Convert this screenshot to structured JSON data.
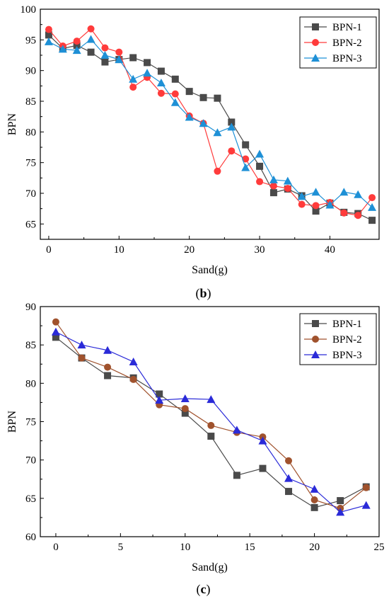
{
  "chart_data": [
    {
      "type": "line",
      "caption_pre": "(",
      "caption_letter": "b",
      "caption_post": ")",
      "xlabel": "Sand(g)",
      "ylabel": "BPN",
      "xlim": [
        -1.2,
        47
      ],
      "ylim": [
        62.5,
        100
      ],
      "xticks": [
        0,
        10,
        20,
        30,
        40
      ],
      "yticks": [
        65,
        70,
        75,
        80,
        85,
        90,
        95,
        100
      ],
      "legend_position": "top-right",
      "x": [
        0,
        2,
        4,
        6,
        8,
        10,
        12,
        14,
        16,
        18,
        20,
        22,
        24,
        26,
        28,
        30,
        32,
        34,
        36,
        38,
        40,
        42,
        44,
        46
      ],
      "series": [
        {
          "name": "BPN-1",
          "color": "#4a4a4a",
          "marker": "square",
          "values": [
            95.8,
            93.6,
            94.1,
            93.0,
            91.4,
            91.8,
            92.1,
            91.3,
            89.9,
            88.6,
            86.6,
            85.6,
            85.5,
            81.6,
            77.9,
            74.4,
            70.1,
            70.7,
            69.6,
            67.1,
            68.4,
            66.9,
            66.7,
            65.6
          ]
        },
        {
          "name": "BPN-2",
          "color": "#ff3b3b",
          "marker": "circle",
          "values": [
            96.7,
            94.0,
            94.8,
            96.8,
            93.7,
            93.0,
            87.3,
            88.9,
            86.3,
            86.2,
            82.6,
            81.4,
            73.6,
            76.9,
            75.6,
            71.9,
            71.2,
            70.8,
            68.2,
            68.0,
            68.5,
            66.8,
            66.4,
            69.3
          ]
        },
        {
          "name": "BPN-3",
          "color": "#1e90d6",
          "marker": "triangle",
          "values": [
            94.7,
            93.5,
            93.3,
            95.1,
            92.5,
            91.8,
            88.6,
            89.6,
            88.0,
            84.8,
            82.4,
            81.4,
            79.9,
            80.8,
            74.2,
            76.4,
            72.2,
            72.0,
            69.5,
            70.2,
            68.1,
            70.2,
            69.8,
            67.7
          ]
        }
      ]
    },
    {
      "type": "line",
      "caption_pre": "(",
      "caption_letter": "c",
      "caption_post": ")",
      "xlabel": "Sand(g)",
      "ylabel": "BPN",
      "xlim": [
        -1.2,
        25
      ],
      "ylim": [
        60,
        90
      ],
      "xticks": [
        0,
        5,
        10,
        15,
        20,
        25
      ],
      "yticks": [
        60,
        65,
        70,
        75,
        80,
        85,
        90
      ],
      "legend_position": "top-right",
      "x": [
        0,
        2,
        4,
        6,
        8,
        10,
        12,
        14,
        16,
        18,
        20,
        22,
        24
      ],
      "series": [
        {
          "name": "BPN-1",
          "color": "#4a4a4a",
          "marker": "square",
          "values": [
            86.0,
            83.3,
            81.0,
            80.7,
            78.6,
            76.1,
            73.1,
            68.0,
            68.9,
            65.9,
            63.8,
            64.7,
            66.5
          ]
        },
        {
          "name": "BPN-2",
          "color": "#a0522d",
          "marker": "circle",
          "values": [
            88.0,
            83.3,
            82.1,
            80.5,
            77.2,
            76.7,
            74.5,
            73.6,
            73.0,
            69.9,
            64.8,
            63.7,
            66.4
          ]
        },
        {
          "name": "BPN-3",
          "color": "#2a2ad8",
          "marker": "triangle",
          "values": [
            86.7,
            85.0,
            84.3,
            82.8,
            77.8,
            78.0,
            77.9,
            73.9,
            72.5,
            67.6,
            66.2,
            63.2,
            64.1
          ]
        }
      ]
    }
  ]
}
